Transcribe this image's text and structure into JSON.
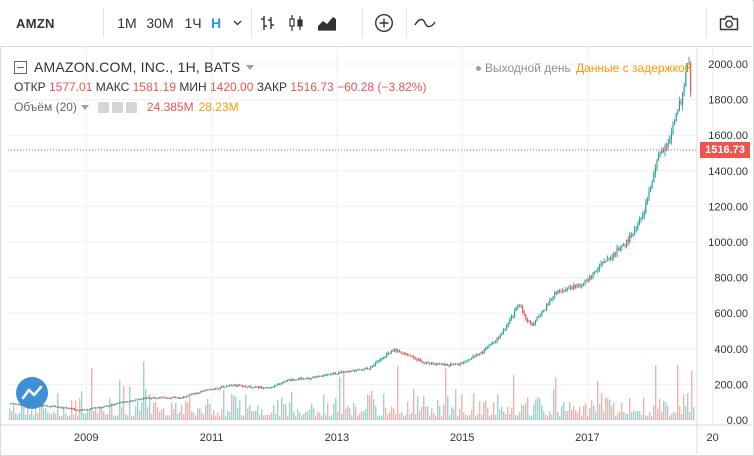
{
  "toolbar": {
    "symbol": "AMZN",
    "intervals": [
      "1М",
      "30М",
      "1Ч",
      "Н"
    ],
    "active_interval": "Н",
    "icons": [
      "chevron-down-icon",
      "bar-chart-icon",
      "candles-icon",
      "area-chart-icon",
      "add-indicator-icon",
      "line-tool-icon",
      "camera-icon"
    ]
  },
  "legend": {
    "title": "AMAZON.COM, INC., 1H, BATS",
    "status_closed": "Выходной день",
    "status_delayed": "Данные с задержкой",
    "open_label": "ОТКР",
    "open": "1577.01",
    "high_label": "МАКС",
    "high": "1581.19",
    "low_label": "МИН",
    "low": "1420.00",
    "close_label": "ЗАКР",
    "close": "1516.73",
    "change": "−60.28 (−3.82%)",
    "volume_label": "Объём (20)",
    "volume_value": "24.385M",
    "volume_ma": "28.23M"
  },
  "colors": {
    "up": "#26a69a",
    "down": "#ef5350",
    "up_vol": "#9ed3ce",
    "down_vol": "#f4b1af",
    "accent": "#2196f3",
    "delayed": "#ff9800"
  },
  "chart_data": {
    "type": "candlestick",
    "x_tick_labels": [
      "2009",
      "2011",
      "2013",
      "2015",
      "2017",
      "20"
    ],
    "y_tick_labels": [
      "2000.00",
      "1800.00",
      "1600.00",
      "1400.00",
      "1200.00",
      "1000.00",
      "800.00",
      "600.00",
      "400.00",
      "200.00",
      "0.00"
    ],
    "ylim": [
      0,
      2000
    ],
    "xlim": [
      2007.75,
      2018.75
    ],
    "last_price": 1516.73,
    "last_price_label": "1516.73",
    "price_path": [
      [
        2007.75,
        90
      ],
      [
        2008.0,
        85
      ],
      [
        2008.5,
        75
      ],
      [
        2008.9,
        55
      ],
      [
        2009.2,
        70
      ],
      [
        2009.6,
        100
      ],
      [
        2010.0,
        125
      ],
      [
        2010.5,
        125
      ],
      [
        2010.9,
        165
      ],
      [
        2011.3,
        195
      ],
      [
        2011.9,
        180
      ],
      [
        2012.2,
        220
      ],
      [
        2012.6,
        240
      ],
      [
        2013.0,
        265
      ],
      [
        2013.5,
        290
      ],
      [
        2013.9,
        395
      ],
      [
        2014.4,
        320
      ],
      [
        2014.9,
        310
      ],
      [
        2015.3,
        380
      ],
      [
        2015.6,
        470
      ],
      [
        2015.9,
        650
      ],
      [
        2016.1,
        520
      ],
      [
        2016.5,
        720
      ],
      [
        2016.9,
        760
      ],
      [
        2017.3,
        900
      ],
      [
        2017.6,
        990
      ],
      [
        2017.9,
        1170
      ],
      [
        2018.1,
        1450
      ],
      [
        2018.3,
        1580
      ],
      [
        2018.5,
        1820
      ],
      [
        2018.6,
        2020
      ],
      [
        2018.7,
        1640
      ],
      [
        2018.75,
        1516.73
      ]
    ]
  }
}
